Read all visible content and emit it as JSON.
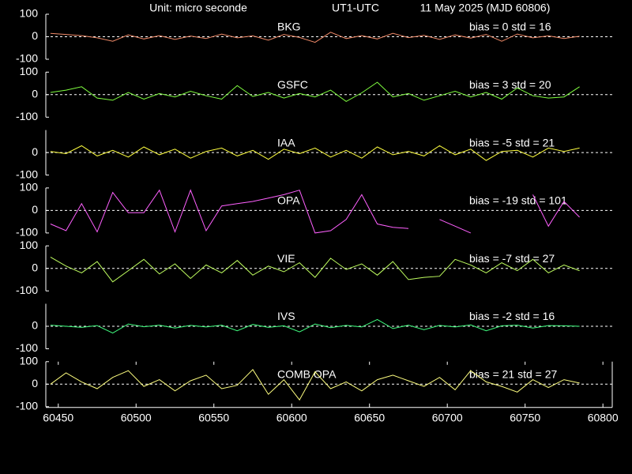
{
  "chart_data": [
    {
      "type": "line",
      "subtitle": "Unit: micro seconde",
      "title": "UT1-UTC",
      "annotation": "11 May 2025  (MJD 60806)",
      "label": "BKG",
      "stats": "bias = 0  std = 16",
      "color": "#f08a68",
      "x": [
        60445,
        60455,
        60465,
        60475,
        60485,
        60495,
        60505,
        60515,
        60525,
        60535,
        60545,
        60555,
        60565,
        60575,
        60585,
        60595,
        60605,
        60615,
        60625,
        60635,
        60645,
        60655,
        60665,
        60675,
        60685,
        60695,
        60705,
        60715,
        60725,
        60735,
        60745,
        60755,
        60765,
        60775,
        60785
      ],
      "values": [
        15,
        10,
        5,
        -5,
        -20,
        8,
        -10,
        5,
        -12,
        3,
        -8,
        12,
        -5,
        4,
        -15,
        10,
        -3,
        -25,
        20,
        -8,
        5,
        -10,
        15,
        -4,
        6,
        -12,
        8,
        -6,
        10,
        -20,
        12,
        -5,
        4,
        -8,
        2
      ],
      "xlim": [
        60442,
        60806
      ],
      "ylim": [
        -100,
        100
      ],
      "yticks": [
        -100,
        0,
        100
      ],
      "zero_line": true
    },
    {
      "type": "line",
      "label": "GSFC",
      "stats": "bias = 3  std = 20",
      "color": "#80ff40",
      "x": [
        60445,
        60455,
        60465,
        60475,
        60485,
        60495,
        60505,
        60515,
        60525,
        60535,
        60545,
        60555,
        60565,
        60575,
        60585,
        60595,
        60605,
        60615,
        60625,
        60635,
        60645,
        60655,
        60665,
        60675,
        60685,
        60695,
        60705,
        60715,
        60725,
        60735,
        60745,
        60755,
        60765,
        60775,
        60785
      ],
      "values": [
        10,
        20,
        35,
        -15,
        -25,
        10,
        -20,
        5,
        -10,
        15,
        -5,
        -20,
        40,
        -8,
        10,
        -15,
        5,
        -10,
        20,
        -30,
        8,
        55,
        -10,
        5,
        -25,
        -5,
        15,
        -10,
        10,
        -20,
        30,
        -5,
        -15,
        -10,
        35
      ],
      "xlim": [
        60442,
        60806
      ],
      "ylim": [
        -100,
        100
      ],
      "yticks": [
        -100,
        0,
        100
      ],
      "zero_line": true
    },
    {
      "type": "line",
      "label": "IAA",
      "stats": "bias = -5  std = 21",
      "color": "#ffff40",
      "x": [
        60445,
        60455,
        60465,
        60475,
        60485,
        60495,
        60505,
        60515,
        60525,
        60535,
        60545,
        60555,
        60565,
        60575,
        60585,
        60595,
        60605,
        60615,
        60625,
        60635,
        60645,
        60655,
        60665,
        60675,
        60685,
        60695,
        60705,
        60715,
        60725,
        60735,
        60745,
        60755,
        60765,
        60775,
        60785
      ],
      "values": [
        5,
        -5,
        30,
        -15,
        10,
        -20,
        25,
        -10,
        15,
        -25,
        5,
        20,
        -15,
        10,
        -30,
        15,
        -5,
        20,
        -20,
        10,
        -25,
        25,
        -10,
        5,
        -15,
        30,
        -10,
        15,
        -35,
        5,
        10,
        -20,
        20,
        5,
        20
      ],
      "xlim": [
        60442,
        60806
      ],
      "ylim": [
        -100,
        100
      ],
      "yticks": [
        -100,
        0
      ],
      "zero_line": true
    },
    {
      "type": "line",
      "label": "OPA",
      "stats": "bias = -19  std = 101",
      "color": "#ff60ff",
      "x": [
        60445,
        60455,
        60465,
        60475,
        60485,
        60495,
        60505,
        60515,
        60525,
        60535,
        60545,
        60555,
        60565,
        60575,
        60585,
        60595,
        60605,
        60615,
        60625,
        60635,
        60645,
        60655,
        60665,
        60675,
        60685,
        60695,
        60705,
        60715,
        60725,
        60735,
        60745,
        60755,
        60765,
        60775,
        60785
      ],
      "values": [
        -60,
        -90,
        30,
        -95,
        80,
        -10,
        -10,
        90,
        -95,
        90,
        -90,
        20,
        30,
        40,
        55,
        70,
        90,
        -100,
        -90,
        -40,
        70,
        -60,
        -75,
        -80,
        null,
        -40,
        -70,
        -100,
        null,
        null,
        null,
        70,
        -70,
        40,
        -30
      ],
      "xlim": [
        60442,
        60806
      ],
      "ylim": [
        -100,
        100
      ],
      "yticks": [
        -100,
        0,
        100
      ],
      "zero_line": true
    },
    {
      "type": "line",
      "label": "VIE",
      "stats": "bias = -7  std = 27",
      "color": "#c0ff60",
      "x": [
        60445,
        60455,
        60465,
        60475,
        60485,
        60495,
        60505,
        60515,
        60525,
        60535,
        60545,
        60555,
        60565,
        60575,
        60585,
        60595,
        60605,
        60615,
        60625,
        60635,
        60645,
        60655,
        60665,
        60675,
        60685,
        60695,
        60705,
        60715,
        60725,
        60735,
        60745,
        60755,
        60765,
        60775,
        60785
      ],
      "values": [
        50,
        10,
        -20,
        30,
        -60,
        -10,
        40,
        -25,
        20,
        -45,
        15,
        -20,
        35,
        -30,
        10,
        -15,
        25,
        -40,
        45,
        -5,
        20,
        -30,
        30,
        -50,
        -40,
        -35,
        40,
        15,
        -20,
        25,
        -10,
        40,
        -20,
        15,
        -10
      ],
      "xlim": [
        60442,
        60806
      ],
      "ylim": [
        -100,
        100
      ],
      "yticks": [
        -100,
        0,
        100
      ],
      "zero_line": true
    },
    {
      "type": "line",
      "label": "IVS",
      "stats": "bias = -2  std = 16",
      "color": "#40ff80",
      "x": [
        60445,
        60455,
        60465,
        60475,
        60485,
        60495,
        60505,
        60515,
        60525,
        60535,
        60545,
        60555,
        60565,
        60575,
        60585,
        60595,
        60605,
        60615,
        60625,
        60635,
        60645,
        60655,
        60665,
        60675,
        60685,
        60695,
        60705,
        60715,
        60725,
        60735,
        60745,
        60755,
        60765,
        60775,
        60785
      ],
      "values": [
        5,
        0,
        -5,
        3,
        -30,
        10,
        -2,
        5,
        -8,
        4,
        -3,
        5,
        -20,
        8,
        -5,
        2,
        -25,
        10,
        -6,
        4,
        -3,
        30,
        -10,
        5,
        -15,
        4,
        -3,
        6,
        -20,
        2,
        5,
        -8,
        3,
        2,
        0
      ],
      "xlim": [
        60442,
        60806
      ],
      "ylim": [
        -100,
        100
      ],
      "yticks": [
        -100,
        0
      ],
      "zero_line": true
    },
    {
      "type": "line",
      "label": "COMB OPA",
      "stats": "bias = 21  std = 27",
      "color": "#ffff80",
      "x": [
        60445,
        60455,
        60465,
        60475,
        60485,
        60495,
        60505,
        60515,
        60525,
        60535,
        60545,
        60555,
        60565,
        60575,
        60585,
        60595,
        60605,
        60615,
        60625,
        60635,
        60645,
        60655,
        60665,
        60675,
        60685,
        60695,
        60705,
        60715,
        60725,
        60735,
        60745,
        60755,
        60765,
        60775,
        60785
      ],
      "values": [
        0,
        50,
        10,
        -20,
        30,
        60,
        -10,
        20,
        -30,
        15,
        40,
        -20,
        -5,
        65,
        -45,
        20,
        -70,
        55,
        -20,
        10,
        -30,
        20,
        40,
        15,
        -10,
        30,
        -25,
        60,
        10,
        -10,
        -35,
        20,
        -15,
        20,
        5
      ],
      "xlim": [
        60442,
        60806
      ],
      "ylim": [
        -100,
        100
      ],
      "yticks": [
        -100,
        0,
        100
      ],
      "xticks": [
        60450,
        60500,
        60550,
        60600,
        60650,
        60700,
        60750,
        60800
      ],
      "zero_line": true
    }
  ]
}
